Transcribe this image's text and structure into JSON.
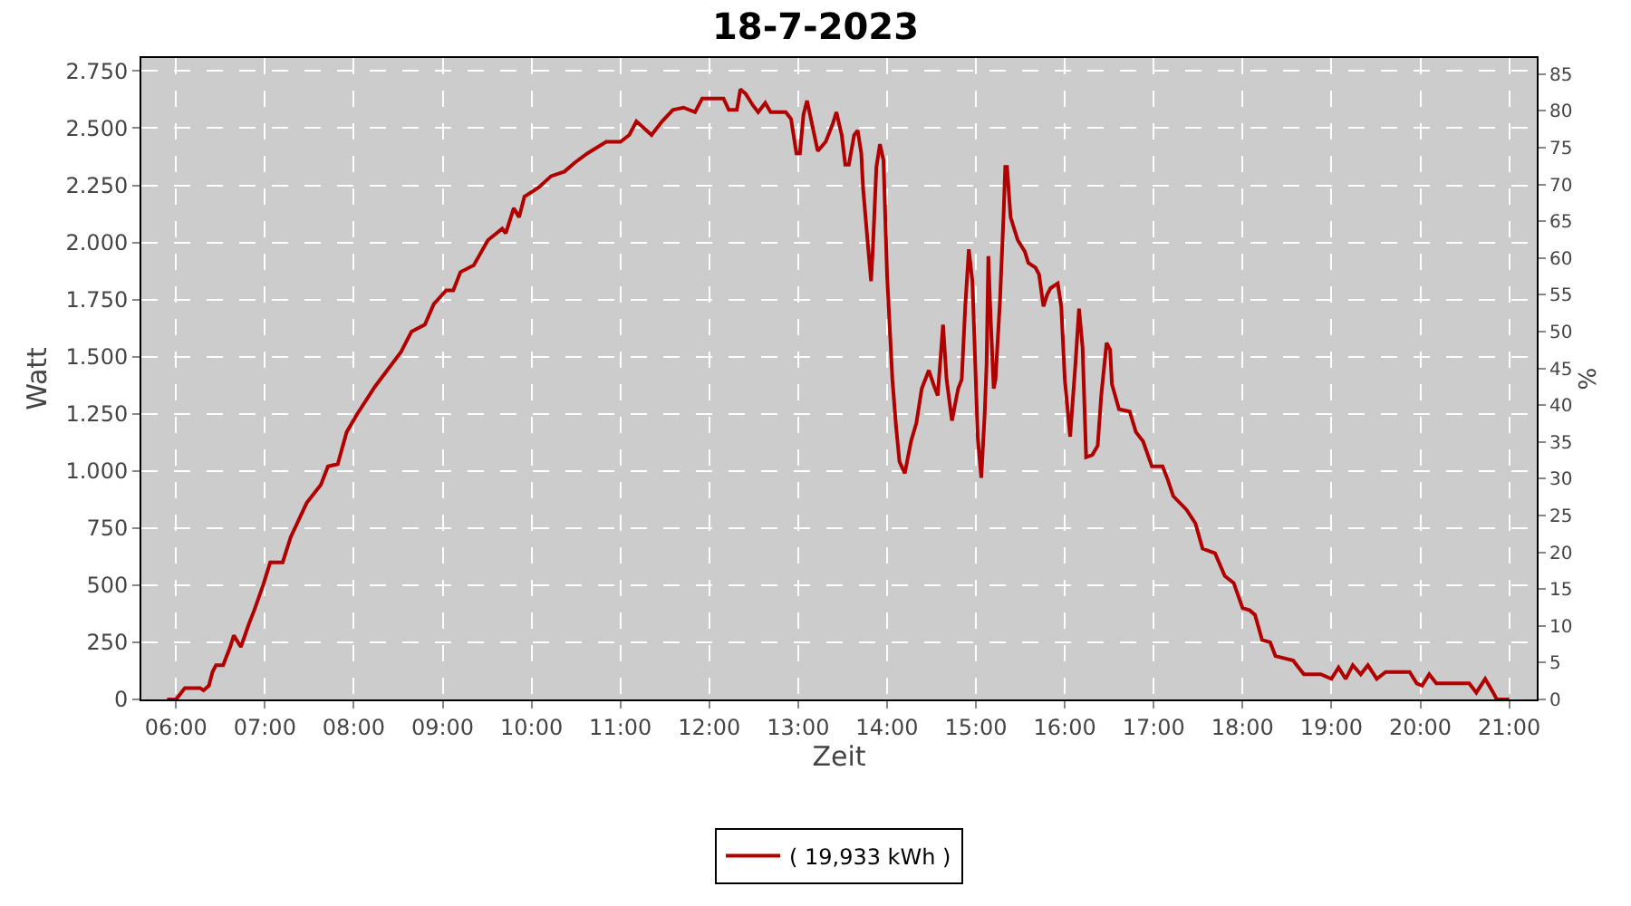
{
  "chart_data": {
    "type": "line",
    "title": "18-7-2023",
    "xlabel": "Zeit",
    "ylabel": "Watt",
    "y2label": "%",
    "xlim": [
      5.61,
      21.31
    ],
    "xticks": [
      {
        "value": 6,
        "label": "06:00"
      },
      {
        "value": 7,
        "label": "07:00"
      },
      {
        "value": 8,
        "label": "08:00"
      },
      {
        "value": 9,
        "label": "09:00"
      },
      {
        "value": 10,
        "label": "10:00"
      },
      {
        "value": 11,
        "label": "11:00"
      },
      {
        "value": 12,
        "label": "12:00"
      },
      {
        "value": 13,
        "label": "13:00"
      },
      {
        "value": 14,
        "label": "14:00"
      },
      {
        "value": 15,
        "label": "15:00"
      },
      {
        "value": 16,
        "label": "16:00"
      },
      {
        "value": 17,
        "label": "17:00"
      },
      {
        "value": 18,
        "label": "18:00"
      },
      {
        "value": 19,
        "label": "19:00"
      },
      {
        "value": 20,
        "label": "20:00"
      },
      {
        "value": 21,
        "label": "21:00"
      }
    ],
    "ylim": [
      0,
      2807
    ],
    "yticks": [
      0,
      250,
      500,
      750,
      {
        "value": 1000,
        "label": "1.000"
      },
      {
        "value": 1250,
        "label": "1.250"
      },
      {
        "value": 1500,
        "label": "1.500"
      },
      {
        "value": 1750,
        "label": "1.750"
      },
      {
        "value": 2000,
        "label": "2.000"
      },
      {
        "value": 2250,
        "label": "2.250"
      },
      {
        "value": 2500,
        "label": "2.500"
      },
      {
        "value": 2750,
        "label": "2.750"
      }
    ],
    "y2lim": [
      0,
      87.2
    ],
    "y2ticks": [
      0,
      5,
      10,
      15,
      20,
      25,
      30,
      35,
      40,
      45,
      50,
      55,
      60,
      65,
      70,
      75,
      80,
      85
    ],
    "grid": true,
    "legend": "bottom",
    "line_style": "solid",
    "marker": "none",
    "series": [
      {
        "name": "( 19,933 kWh )",
        "color": "#b00000",
        "x": [
          5.9,
          6.0,
          6.1,
          6.27,
          6.31,
          6.37,
          6.41,
          6.45,
          6.53,
          6.61,
          6.65,
          6.73,
          6.82,
          6.88,
          6.98,
          7.06,
          7.2,
          7.29,
          7.47,
          7.63,
          7.71,
          7.82,
          7.92,
          8.04,
          8.24,
          8.53,
          8.65,
          8.8,
          8.9,
          9.04,
          9.12,
          9.2,
          9.35,
          9.51,
          9.67,
          9.71,
          9.8,
          9.86,
          9.92,
          10.08,
          10.22,
          10.37,
          10.49,
          10.63,
          10.84,
          11.0,
          11.1,
          11.18,
          11.35,
          11.47,
          11.59,
          11.71,
          11.84,
          11.92,
          12.16,
          12.22,
          12.31,
          12.35,
          12.41,
          12.49,
          12.55,
          12.63,
          12.69,
          12.86,
          12.92,
          12.98,
          13.02,
          13.06,
          13.1,
          13.16,
          13.22,
          13.31,
          13.39,
          13.43,
          13.49,
          13.53,
          13.57,
          13.63,
          13.67,
          13.71,
          13.73,
          13.78,
          13.82,
          13.84,
          13.88,
          13.92,
          13.96,
          14.0,
          14.06,
          14.1,
          14.14,
          14.2,
          14.27,
          14.33,
          14.39,
          14.47,
          14.53,
          14.57,
          14.63,
          14.67,
          14.73,
          14.8,
          14.84,
          14.88,
          14.92,
          14.96,
          14.98,
          15.02,
          15.06,
          15.1,
          15.12,
          15.14,
          15.16,
          15.2,
          15.22,
          15.27,
          15.31,
          15.33,
          15.35,
          15.39,
          15.47,
          15.55,
          15.59,
          15.67,
          15.71,
          15.76,
          15.8,
          15.84,
          15.92,
          15.96,
          16.0,
          16.06,
          16.12,
          16.16,
          16.2,
          16.24,
          16.31,
          16.37,
          16.41,
          16.47,
          16.51,
          16.53,
          16.61,
          16.73,
          16.8,
          16.88,
          16.98,
          17.1,
          17.16,
          17.22,
          17.37,
          17.47,
          17.55,
          17.69,
          17.8,
          17.9,
          18.0,
          18.08,
          18.14,
          18.22,
          18.31,
          18.37,
          18.57,
          18.61,
          18.69,
          18.88,
          19.0,
          19.08,
          19.16,
          19.24,
          19.33,
          19.41,
          19.51,
          19.61,
          19.88,
          19.96,
          20.02,
          20.1,
          20.18,
          20.24,
          20.55,
          20.63,
          20.73,
          20.82,
          20.86,
          21.0
        ],
        "values": [
          0,
          0,
          50,
          50,
          40,
          60,
          120,
          150,
          150,
          230,
          280,
          230,
          330,
          390,
          500,
          600,
          600,
          710,
          860,
          940,
          1020,
          1030,
          1170,
          1250,
          1370,
          1520,
          1610,
          1640,
          1730,
          1790,
          1790,
          1870,
          1900,
          2010,
          2060,
          2040,
          2150,
          2110,
          2200,
          2240,
          2290,
          2310,
          2350,
          2390,
          2440,
          2440,
          2470,
          2530,
          2470,
          2530,
          2580,
          2590,
          2570,
          2630,
          2630,
          2580,
          2580,
          2670,
          2650,
          2600,
          2570,
          2610,
          2570,
          2570,
          2540,
          2390,
          2390,
          2560,
          2620,
          2510,
          2400,
          2440,
          2520,
          2570,
          2470,
          2340,
          2340,
          2470,
          2490,
          2390,
          2240,
          2010,
          1830,
          1970,
          2330,
          2430,
          2360,
          1860,
          1400,
          1200,
          1040,
          990,
          1130,
          1210,
          1360,
          1440,
          1370,
          1330,
          1640,
          1400,
          1220,
          1360,
          1400,
          1720,
          1970,
          1830,
          1610,
          1150,
          970,
          1260,
          1470,
          1940,
          1720,
          1360,
          1400,
          1740,
          2110,
          2330,
          2330,
          2110,
          2010,
          1960,
          1910,
          1890,
          1860,
          1720,
          1770,
          1800,
          1820,
          1720,
          1400,
          1150,
          1470,
          1710,
          1540,
          1060,
          1070,
          1110,
          1330,
          1560,
          1530,
          1380,
          1270,
          1260,
          1170,
          1130,
          1020,
          1020,
          960,
          890,
          830,
          770,
          660,
          640,
          540,
          510,
          400,
          390,
          370,
          260,
          250,
          190,
          170,
          150,
          110,
          110,
          90,
          140,
          90,
          150,
          110,
          150,
          90,
          120,
          120,
          70,
          60,
          110,
          70,
          70,
          70,
          30,
          90,
          30,
          0,
          0
        ]
      }
    ]
  }
}
